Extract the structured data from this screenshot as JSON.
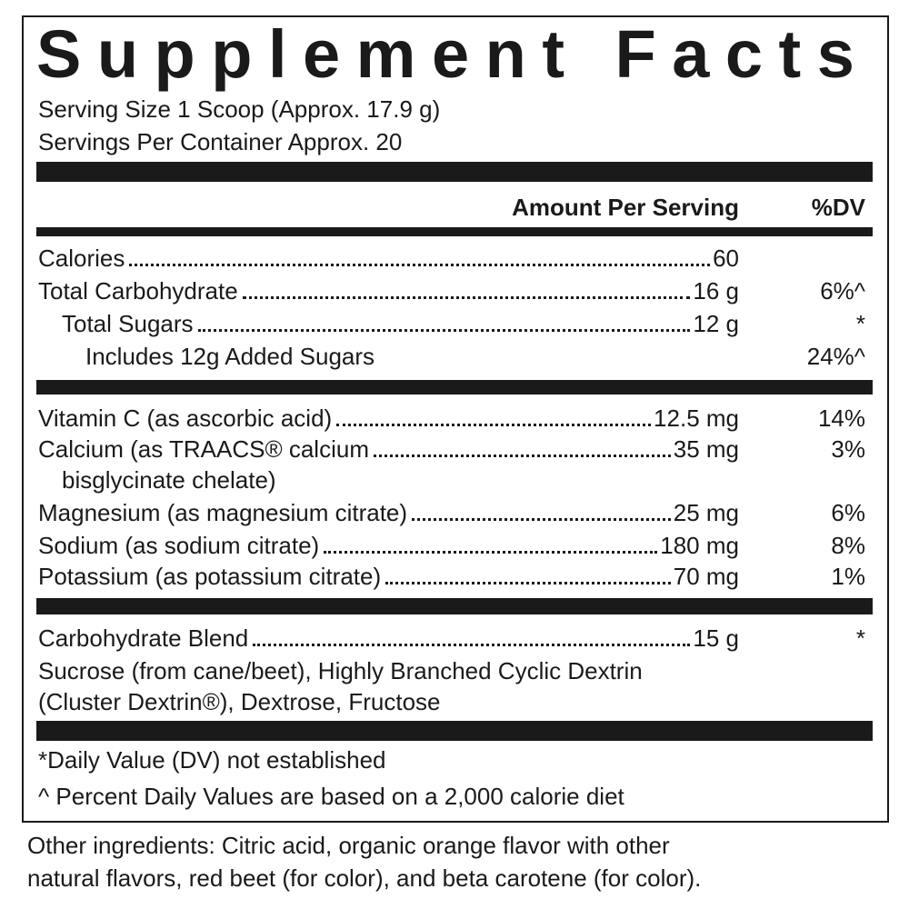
{
  "title": "Supplement Facts",
  "serving_size": "Serving Size 1 Scoop (Approx. 17.9 g)",
  "servings_per_container": "Servings Per Container Approx. 20",
  "amount_header": "Amount Per Serving",
  "dv_header": "%DV",
  "macros": [
    {
      "name": "Calories",
      "amount": "60"
    },
    {
      "name": "Total Carbohydrate",
      "amount": "16 g",
      "dv": "6%^"
    },
    {
      "name": "Total Sugars",
      "amount": "12 g",
      "dv": "*"
    },
    {
      "name": "Includes 12g Added Sugars",
      "dv": "24%^"
    }
  ],
  "minerals": [
    {
      "name": "Vitamin C (as ascorbic acid)",
      "amount": "12.5 mg",
      "dv": "14%"
    },
    {
      "name": "Calcium (as TRAACS® calcium",
      "name_continued": "bisglycinate chelate)",
      "amount": "35 mg",
      "dv": "3%"
    },
    {
      "name": "Magnesium (as magnesium citrate)",
      "amount": "25 mg",
      "dv": "6%"
    },
    {
      "name": "Sodium (as sodium citrate)",
      "amount": "180 mg",
      "dv": "8%"
    },
    {
      "name": "Potassium (as potassium citrate)",
      "amount": "70 mg",
      "dv": "1%"
    }
  ],
  "blend": {
    "name": "Carbohydrate Blend",
    "amount": "15 g",
    "dv": "*",
    "ingredients": [
      "Sucrose (from cane/beet), Highly Branched Cyclic Dextrin",
      "(Cluster Dextrin®), Dextrose, Fructose"
    ]
  },
  "footnotes": [
    "*Daily Value (DV) not established",
    "^ Percent Daily Values are based on a 2,000 calorie diet"
  ],
  "other_ingredients": [
    "Other ingredients: Citric acid, organic orange flavor with other",
    "natural flavors, red beet (for color), and beta carotene (for color)."
  ]
}
